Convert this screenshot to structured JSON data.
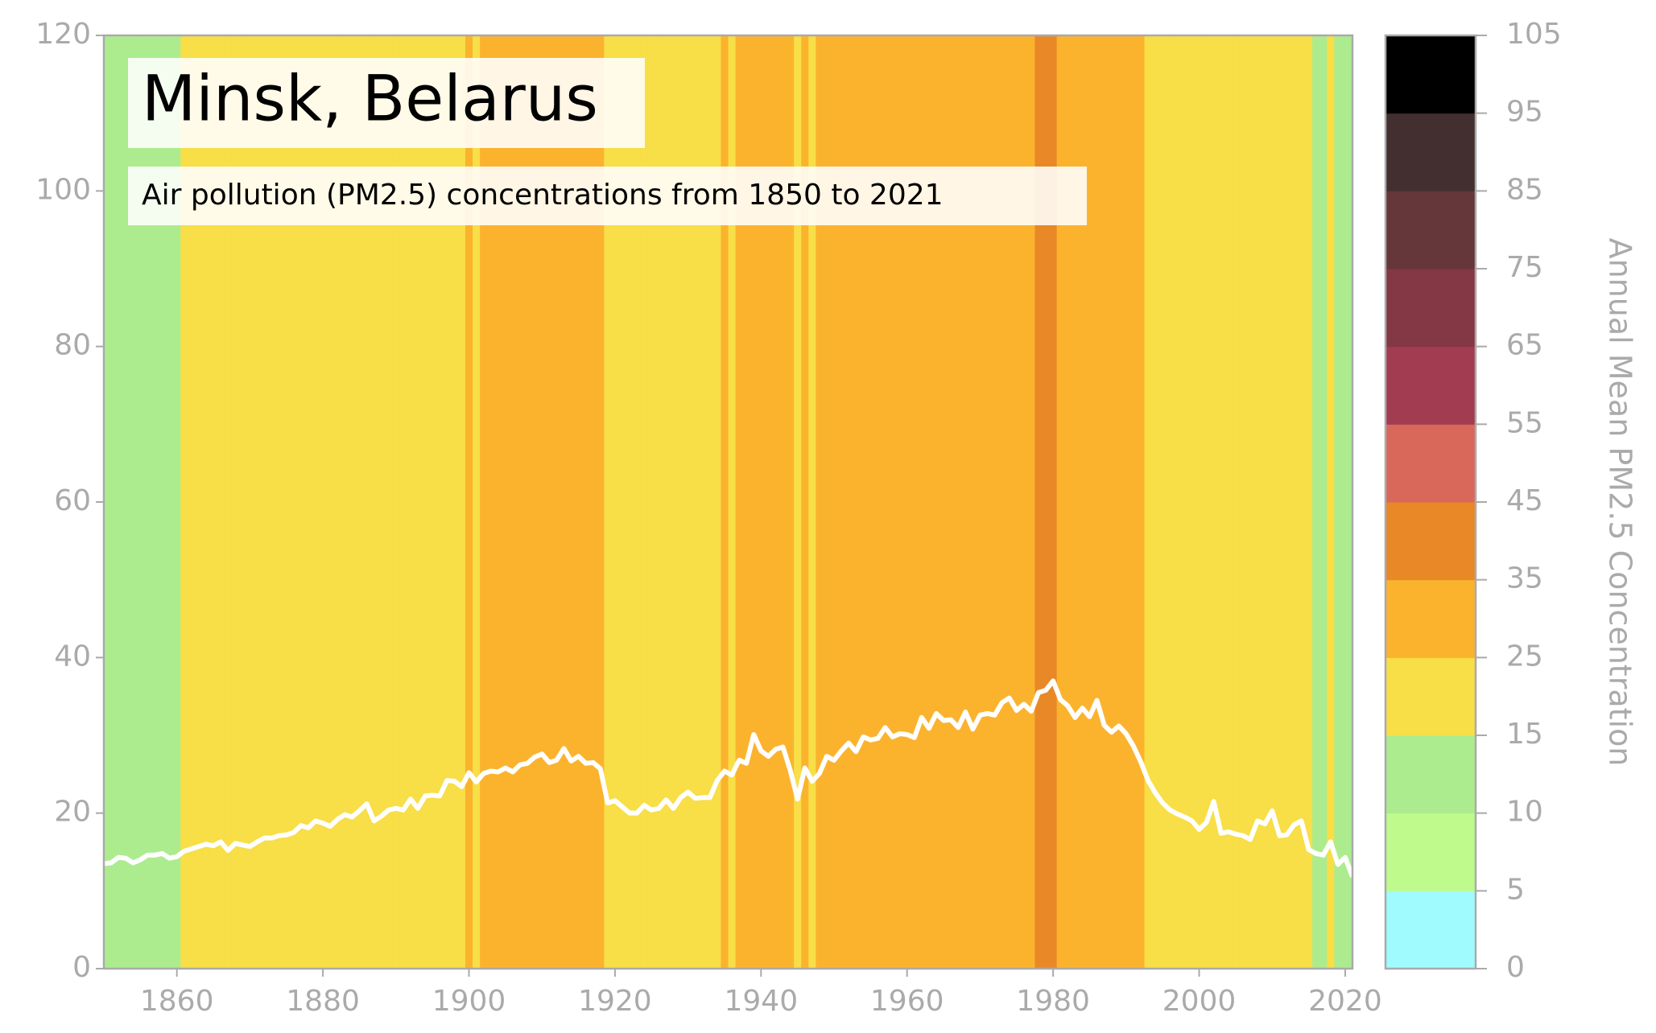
{
  "chart_data": {
    "type": "line",
    "title": "Minsk, Belarus",
    "subtitle": "Air pollution (PM2.5) concentrations from 1850 to 2021",
    "line_color": "#ffffff",
    "x": [
      1850,
      1851,
      1852,
      1853,
      1854,
      1855,
      1856,
      1857,
      1858,
      1859,
      1860,
      1861,
      1862,
      1863,
      1864,
      1865,
      1866,
      1867,
      1868,
      1869,
      1870,
      1871,
      1872,
      1873,
      1874,
      1875,
      1876,
      1877,
      1878,
      1879,
      1880,
      1881,
      1882,
      1883,
      1884,
      1885,
      1886,
      1887,
      1888,
      1889,
      1890,
      1891,
      1892,
      1893,
      1894,
      1895,
      1896,
      1897,
      1898,
      1899,
      1900,
      1901,
      1902,
      1903,
      1904,
      1905,
      1906,
      1907,
      1908,
      1909,
      1910,
      1911,
      1912,
      1913,
      1914,
      1915,
      1916,
      1917,
      1918,
      1919,
      1920,
      1921,
      1922,
      1923,
      1924,
      1925,
      1926,
      1927,
      1928,
      1929,
      1930,
      1931,
      1932,
      1933,
      1934,
      1935,
      1936,
      1937,
      1938,
      1939,
      1940,
      1941,
      1942,
      1943,
      1944,
      1945,
      1946,
      1947,
      1948,
      1949,
      1950,
      1951,
      1952,
      1953,
      1954,
      1955,
      1956,
      1957,
      1958,
      1959,
      1960,
      1961,
      1962,
      1963,
      1964,
      1965,
      1966,
      1967,
      1968,
      1969,
      1970,
      1971,
      1972,
      1973,
      1974,
      1975,
      1976,
      1977,
      1978,
      1979,
      1980,
      1981,
      1982,
      1983,
      1984,
      1985,
      1986,
      1987,
      1988,
      1989,
      1990,
      1991,
      1992,
      1993,
      1994,
      1995,
      1996,
      1997,
      1998,
      1999,
      2000,
      2001,
      2002,
      2003,
      2004,
      2005,
      2006,
      2007,
      2008,
      2009,
      2010,
      2011,
      2012,
      2013,
      2014,
      2015,
      2016,
      2017,
      2018,
      2019,
      2020,
      2021
    ],
    "values": [
      13.5,
      13.6,
      14.3,
      14.2,
      13.6,
      14.0,
      14.6,
      14.6,
      14.8,
      14.2,
      14.4,
      15.1,
      15.4,
      15.7,
      16.0,
      15.8,
      16.3,
      15.2,
      16.1,
      15.9,
      15.7,
      16.3,
      16.8,
      16.8,
      17.1,
      17.2,
      17.5,
      18.4,
      18.1,
      19.0,
      18.7,
      18.3,
      19.2,
      19.8,
      19.5,
      20.3,
      21.2,
      19.0,
      19.6,
      20.4,
      20.6,
      20.4,
      21.8,
      20.6,
      22.2,
      22.3,
      22.2,
      24.2,
      24.1,
      23.4,
      25.2,
      24.0,
      25.1,
      25.4,
      25.3,
      25.8,
      25.3,
      26.2,
      26.4,
      27.2,
      27.6,
      26.5,
      26.8,
      28.3,
      26.7,
      27.3,
      26.4,
      26.5,
      25.7,
      21.3,
      21.6,
      20.8,
      20.0,
      20.0,
      21.0,
      20.4,
      20.6,
      21.7,
      20.6,
      22.0,
      22.7,
      21.9,
      22.0,
      22.0,
      24.2,
      25.4,
      24.9,
      26.8,
      26.4,
      30.1,
      28.0,
      27.3,
      28.2,
      28.5,
      25.5,
      21.8,
      25.8,
      24.1,
      25.1,
      27.3,
      26.8,
      28.0,
      29.0,
      27.9,
      29.8,
      29.4,
      29.6,
      31.0,
      29.8,
      30.2,
      30.1,
      29.7,
      32.3,
      30.9,
      32.8,
      31.9,
      32.0,
      31.0,
      33.0,
      30.8,
      32.6,
      32.8,
      32.6,
      34.2,
      34.8,
      33.2,
      34.0,
      33.1,
      35.5,
      35.8,
      37.0,
      34.6,
      33.8,
      32.3,
      33.5,
      32.4,
      34.5,
      31.3,
      30.4,
      31.2,
      30.2,
      28.6,
      26.6,
      24.2,
      22.6,
      21.3,
      20.4,
      19.9,
      19.5,
      19.0,
      17.9,
      18.8,
      21.5,
      17.4,
      17.6,
      17.3,
      17.1,
      16.6,
      19.0,
      18.6,
      20.3,
      17.1,
      17.2,
      18.5,
      19.0,
      15.3,
      14.8,
      14.6,
      16.3,
      13.4,
      14.3,
      11.8
    ],
    "xlim": [
      1850,
      2021
    ],
    "xticks": [
      1860,
      1880,
      1900,
      1920,
      1940,
      1960,
      1980,
      2000,
      2020
    ],
    "ylim": [
      0,
      120
    ],
    "yticks": [
      0,
      20,
      40,
      60,
      80,
      100,
      120
    ],
    "colorbar": {
      "label": "Annual Mean PM2.5 Concentration",
      "bounds": [
        0,
        5,
        10,
        15,
        25,
        35,
        45,
        55,
        65,
        75,
        85,
        95,
        105
      ],
      "colors": [
        "#a0fbff",
        "#bffa8c",
        "#acec8e",
        "#f8de47",
        "#fbb32e",
        "#e98826",
        "#d9685a",
        "#a23c51",
        "#843744",
        "#65373b",
        "#432e30",
        "#000000"
      ]
    }
  }
}
